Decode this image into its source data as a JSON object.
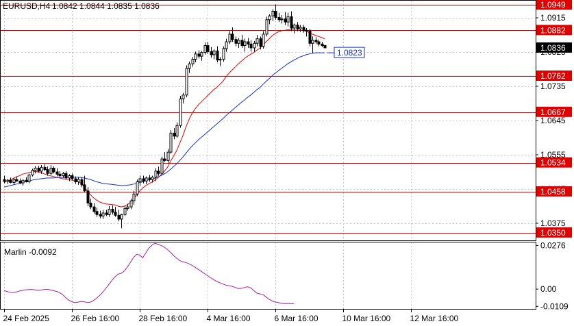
{
  "header": {
    "symbol": "EURUSD,H4",
    "ohlc": "1.0842 1.0844 1.0835 1.0836"
  },
  "indicator": {
    "label": "Marlin -0.0092"
  },
  "colors": {
    "frame": "#000000",
    "grid": "#c8c8c8",
    "level": "#e00000",
    "ma_red": "#e00000",
    "ma_blue": "#1030c8",
    "oscillator": "#a020a0",
    "bull_body": "#ffffff",
    "bear_body": "#000000",
    "current_price_bg": "#000000",
    "current_price_fg": "#ffffff",
    "ma_tag_border": "#1030c8"
  },
  "chart_data": [
    {
      "type": "candlestick",
      "title": "EURUSD,H4",
      "ylim": [
        1.033,
        1.096
      ],
      "y_ticks": [
        "1.0915",
        "1.0825",
        "1.0735",
        "1.0645",
        "1.0555",
        "1.0465",
        "1.0375"
      ],
      "x_tick_labels": [
        "24 Feb 2025",
        "26 Feb 16:00",
        "28 Feb 16:00",
        "4 Mar 16:00",
        "6 Mar 16:00",
        "10 Mar 16:00",
        "12 Mar 16:00"
      ],
      "x_tick_index": [
        0,
        22,
        44,
        66,
        88,
        110,
        132
      ],
      "levels": [
        "1.0949",
        "1.0882",
        "1.0762",
        "1.0667",
        "1.0534",
        "1.0458",
        "1.0350"
      ],
      "current_price": "1.0836",
      "ma_tag": "1.0823",
      "candles": [
        [
          1.049,
          1.05,
          1.048,
          1.0485
        ],
        [
          1.0485,
          1.0492,
          1.0478,
          1.0488
        ],
        [
          1.0488,
          1.0495,
          1.048,
          1.0482
        ],
        [
          1.0482,
          1.0494,
          1.0476,
          1.049
        ],
        [
          1.049,
          1.0498,
          1.0484,
          1.0486
        ],
        [
          1.0486,
          1.0493,
          1.0478,
          1.0481
        ],
        [
          1.0481,
          1.049,
          1.0474,
          1.0488
        ],
        [
          1.0488,
          1.0496,
          1.0482,
          1.0484
        ],
        [
          1.0484,
          1.0505,
          1.048,
          1.0502
        ],
        [
          1.0502,
          1.0518,
          1.0498,
          1.0514
        ],
        [
          1.0514,
          1.0525,
          1.0506,
          1.052
        ],
        [
          1.052,
          1.0526,
          1.0508,
          1.0512
        ],
        [
          1.0512,
          1.0528,
          1.0505,
          1.0522
        ],
        [
          1.0522,
          1.053,
          1.0512,
          1.0516
        ],
        [
          1.0516,
          1.0524,
          1.05,
          1.0506
        ],
        [
          1.0506,
          1.0528,
          1.0502,
          1.052
        ],
        [
          1.052,
          1.0525,
          1.0506,
          1.051
        ],
        [
          1.051,
          1.052,
          1.0498,
          1.0504
        ],
        [
          1.0504,
          1.0512,
          1.0496,
          1.05
        ],
        [
          1.05,
          1.051,
          1.0494,
          1.0506
        ],
        [
          1.0506,
          1.0512,
          1.049,
          1.0494
        ],
        [
          1.0494,
          1.0504,
          1.0486,
          1.05
        ],
        [
          1.05,
          1.0506,
          1.0488,
          1.0492
        ],
        [
          1.0492,
          1.0498,
          1.0478,
          1.0484
        ],
        [
          1.0484,
          1.0496,
          1.0476,
          1.049
        ],
        [
          1.049,
          1.0496,
          1.047,
          1.0476
        ],
        [
          1.0476,
          1.05,
          1.0456,
          1.046
        ],
        [
          1.046,
          1.047,
          1.042,
          1.0428
        ],
        [
          1.0428,
          1.044,
          1.0412,
          1.0418
        ],
        [
          1.0418,
          1.0428,
          1.04,
          1.0406
        ],
        [
          1.0406,
          1.0416,
          1.0392,
          1.0398
        ],
        [
          1.0398,
          1.0408,
          1.0388,
          1.0394
        ],
        [
          1.0394,
          1.041,
          1.0386,
          1.0402
        ],
        [
          1.0402,
          1.041,
          1.0394,
          1.0398
        ],
        [
          1.0398,
          1.042,
          1.0392,
          1.0412
        ],
        [
          1.0412,
          1.0422,
          1.0398,
          1.0404
        ],
        [
          1.0404,
          1.0418,
          1.0392,
          1.0396
        ],
        [
          1.0396,
          1.041,
          1.038,
          1.0386
        ],
        [
          1.0386,
          1.04,
          1.0362,
          1.0398
        ],
        [
          1.0398,
          1.042,
          1.0394,
          1.0414
        ],
        [
          1.0414,
          1.0426,
          1.0408,
          1.0418
        ],
        [
          1.0418,
          1.044,
          1.0412,
          1.0434
        ],
        [
          1.0434,
          1.046,
          1.0424,
          1.0452
        ],
        [
          1.0452,
          1.049,
          1.0446,
          1.0484
        ],
        [
          1.0484,
          1.05,
          1.0474,
          1.0492
        ],
        [
          1.0492,
          1.05,
          1.048,
          1.0486
        ],
        [
          1.0486,
          1.0498,
          1.0478,
          1.0494
        ],
        [
          1.0494,
          1.0502,
          1.0484,
          1.049
        ],
        [
          1.049,
          1.05,
          1.0482,
          1.0496
        ],
        [
          1.0496,
          1.052,
          1.0486,
          1.0512
        ],
        [
          1.0512,
          1.0524,
          1.05,
          1.0506
        ],
        [
          1.0506,
          1.055,
          1.0502,
          1.0544
        ],
        [
          1.0544,
          1.0562,
          1.0536,
          1.054
        ],
        [
          1.054,
          1.057,
          1.0534,
          1.0562
        ],
        [
          1.0562,
          1.062,
          1.0558,
          1.0612
        ],
        [
          1.0612,
          1.0625,
          1.0596,
          1.0604
        ],
        [
          1.0604,
          1.064,
          1.06,
          1.0632
        ],
        [
          1.0632,
          1.071,
          1.0626,
          1.0702
        ],
        [
          1.0702,
          1.0718,
          1.069,
          1.0712
        ],
        [
          1.0712,
          1.079,
          1.0706,
          1.0782
        ],
        [
          1.0782,
          1.08,
          1.077,
          1.0794
        ],
        [
          1.0794,
          1.0812,
          1.0786,
          1.0806
        ],
        [
          1.0806,
          1.0826,
          1.0798,
          1.082
        ],
        [
          1.082,
          1.083,
          1.0808,
          1.0814
        ],
        [
          1.0814,
          1.0828,
          1.0802,
          1.0824
        ],
        [
          1.0824,
          1.085,
          1.0818,
          1.0842
        ],
        [
          1.0842,
          1.0852,
          1.082,
          1.0826
        ],
        [
          1.0826,
          1.0838,
          1.081,
          1.0818
        ],
        [
          1.0818,
          1.0832,
          1.0806,
          1.0828
        ],
        [
          1.0828,
          1.084,
          1.0798,
          1.0804
        ],
        [
          1.0804,
          1.0812,
          1.0788,
          1.0806
        ],
        [
          1.0806,
          1.084,
          1.08,
          1.0834
        ],
        [
          1.0834,
          1.086,
          1.0826,
          1.0852
        ],
        [
          1.0852,
          1.088,
          1.0846,
          1.0872
        ],
        [
          1.0872,
          1.089,
          1.0852,
          1.0858
        ],
        [
          1.0858,
          1.0866,
          1.084,
          1.0848
        ],
        [
          1.0848,
          1.0862,
          1.0836,
          1.0856
        ],
        [
          1.0856,
          1.087,
          1.0836,
          1.0842
        ],
        [
          1.0842,
          1.086,
          1.0826,
          1.0852
        ],
        [
          1.0852,
          1.0862,
          1.0836,
          1.0846
        ],
        [
          1.0846,
          1.0856,
          1.0826,
          1.0836
        ],
        [
          1.0836,
          1.0854,
          1.0826,
          1.0848
        ],
        [
          1.0848,
          1.087,
          1.084,
          1.086
        ],
        [
          1.086,
          1.0866,
          1.0832,
          1.084
        ],
        [
          1.084,
          1.088,
          1.0834,
          1.0872
        ],
        [
          1.0872,
          1.0918,
          1.0866,
          1.091
        ],
        [
          1.091,
          1.0924,
          1.0898,
          1.092
        ],
        [
          1.092,
          1.0938,
          1.0906,
          1.0932
        ],
        [
          1.0932,
          1.095,
          1.091,
          1.0916
        ],
        [
          1.0916,
          1.0928,
          1.0904,
          1.091
        ],
        [
          1.091,
          1.0922,
          1.09,
          1.0912
        ],
        [
          1.0912,
          1.093,
          1.0896,
          1.0904
        ],
        [
          1.0904,
          1.0928,
          1.0892,
          1.0918
        ],
        [
          1.0918,
          1.0932,
          1.088,
          1.0888
        ],
        [
          1.0888,
          1.09,
          1.0874,
          1.0896
        ],
        [
          1.0896,
          1.0904,
          1.088,
          1.0886
        ],
        [
          1.0886,
          1.0896,
          1.0878,
          1.089
        ],
        [
          1.089,
          1.0896,
          1.0876,
          1.0882
        ],
        [
          1.0882,
          1.0888,
          1.0866,
          1.088
        ],
        [
          1.088,
          1.0886,
          1.084,
          1.0848
        ],
        [
          1.0848,
          1.0866,
          1.0822,
          1.0856
        ],
        [
          1.0856,
          1.0864,
          1.0846,
          1.0852
        ],
        [
          1.0852,
          1.0858,
          1.084,
          1.0846
        ],
        [
          1.0846,
          1.0852,
          1.0838,
          1.0842
        ],
        [
          1.0842,
          1.0844,
          1.0835,
          1.0836
        ]
      ],
      "series": [
        {
          "values": [
            1.0482,
            1.0486,
            1.0489,
            1.0493,
            1.0497,
            1.05,
            1.0504,
            1.0506,
            1.0508,
            1.051,
            1.0511,
            1.051,
            1.0508,
            1.0505,
            1.0502,
            1.05,
            1.0498,
            1.0496,
            1.0494,
            1.0492,
            1.0491,
            1.049,
            1.0488,
            1.0486,
            1.0484,
            1.048,
            1.047,
            1.046,
            1.045,
            1.0442,
            1.0436,
            1.0431,
            1.0428,
            1.0426,
            1.0425,
            1.0424,
            1.0423,
            1.042,
            1.0418,
            1.042,
            1.0424,
            1.043,
            1.0438,
            1.045,
            1.046,
            1.0468,
            1.0474,
            1.0479,
            1.0483,
            1.0489,
            1.0495,
            1.0503,
            1.0512,
            1.0522,
            1.0538,
            1.0552,
            1.0566,
            1.0586,
            1.0605,
            1.0628,
            1.0648,
            1.0664,
            1.0676,
            1.0686,
            1.0694,
            1.0702,
            1.071,
            1.0718,
            1.0726,
            1.0732,
            1.074,
            1.0748,
            1.076,
            1.077,
            1.0778,
            1.0786,
            1.0794,
            1.0801,
            1.0808,
            1.0814,
            1.0819,
            1.0824,
            1.083,
            1.0835,
            1.0843,
            1.0852,
            1.086,
            1.0868,
            1.0874,
            1.0878,
            1.0881,
            1.0882,
            1.0884,
            1.0883,
            1.0883,
            1.0882,
            1.0882,
            1.0881,
            1.088,
            1.0876,
            1.0872,
            1.0869,
            1.0866,
            1.0863,
            1.086
          ],
          "start_index": 0
        },
        {
          "values": [
            1.047,
            1.0472,
            1.0474,
            1.0476,
            1.0478,
            1.048,
            1.0482,
            1.0484,
            1.0486,
            1.0488,
            1.049,
            1.0491,
            1.0492,
            1.0493,
            1.0494,
            1.0494,
            1.0494,
            1.0495,
            1.0495,
            1.0496,
            1.0496,
            1.0496,
            1.0496,
            1.0496,
            1.0496,
            1.0495,
            1.0494,
            1.0492,
            1.049,
            1.0487,
            1.0484,
            1.0482,
            1.048,
            1.0479,
            1.0478,
            1.0477,
            1.0476,
            1.0475,
            1.0474,
            1.0474,
            1.0475,
            1.0476,
            1.0478,
            1.048,
            1.0482,
            1.0484,
            1.0487,
            1.0489,
            1.0491,
            1.0494,
            1.0497,
            1.0501,
            1.0505,
            1.051,
            1.0517,
            1.0524,
            1.0531,
            1.054,
            1.0549,
            1.0559,
            1.0569,
            1.0578,
            1.0586,
            1.0594,
            1.0601,
            1.0608,
            1.0615,
            1.0622,
            1.0629,
            1.0636,
            1.0643,
            1.065,
            1.0658,
            1.0665,
            1.0672,
            1.0679,
            1.0686,
            1.0693,
            1.0699,
            1.0706,
            1.0712,
            1.0719,
            1.0726,
            1.0732,
            1.074,
            1.0748,
            1.0755,
            1.0763,
            1.077,
            1.0776,
            1.0782,
            1.0788,
            1.0794,
            1.0799,
            1.0804,
            1.0808,
            1.0812,
            1.0815,
            1.0818,
            1.082,
            1.0822,
            1.0823,
            1.0823,
            1.0823,
            1.0823
          ],
          "start_index": 0
        }
      ]
    },
    {
      "type": "line",
      "title": "Marlin -0.0092",
      "ylim": [
        -0.0125,
        0.0295
      ],
      "y_ticks": [
        "0.0276",
        "0.00",
        "-0.0109"
      ],
      "series": [
        {
          "values": [
            -0.001,
            -0.0015,
            -0.002,
            -0.0022,
            -0.0018,
            -0.0012,
            -0.0008,
            -0.0005,
            -0.0003,
            -0.0002,
            -0.0005,
            -0.0008,
            -0.0006,
            -0.0003,
            -0.0001,
            -0.0005,
            -0.001,
            -0.0015,
            -0.0022,
            -0.0035,
            -0.0055,
            -0.007,
            -0.008,
            -0.0085,
            -0.0082,
            -0.0078,
            -0.008,
            -0.0085,
            -0.0082,
            -0.0072,
            -0.0058,
            -0.004,
            -0.002,
            0.0005,
            0.003,
            0.0055,
            0.0078,
            0.0095,
            0.01,
            0.0115,
            0.014,
            0.017,
            0.02,
            0.022,
            0.0215,
            0.0198,
            0.023,
            0.026,
            0.0278,
            0.029,
            0.0282,
            0.0276,
            0.0265,
            0.025,
            0.0232,
            0.0212,
            0.0195,
            0.018,
            0.0172,
            0.0168,
            0.016,
            0.015,
            0.0138,
            0.0125,
            0.0112,
            0.0098,
            0.0085,
            0.0072,
            0.006,
            0.0048,
            0.004,
            0.0032,
            0.0025,
            0.002,
            0.0018,
            0.001,
            0.0004,
            0.0005,
            0.001,
            0.0015,
            0.0008,
            -0.001,
            -0.0025,
            -0.003,
            -0.0035,
            -0.005,
            -0.0065,
            -0.0075,
            -0.0082,
            -0.0085,
            -0.009,
            -0.0092,
            -0.0091,
            -0.0092,
            -0.0092
          ],
          "start_index": 0
        }
      ]
    }
  ]
}
